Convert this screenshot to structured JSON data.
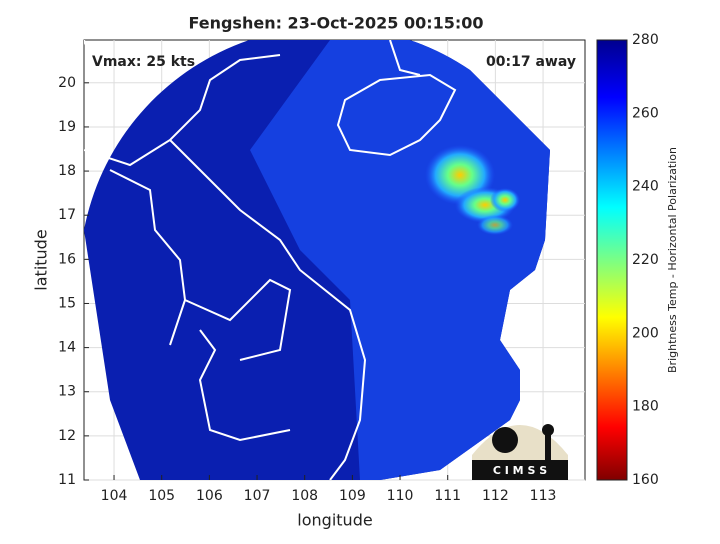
{
  "map": {
    "title": "Fengshen: 23-Oct-2025 00:15:00",
    "annotations": [
      "Vmax: 25 kts",
      "00:17 away"
    ],
    "xlabel": "longitude",
    "ylabel": "latitude",
    "xlim": [
      103.37,
      113.88
    ],
    "xticks": [
      104,
      105,
      106,
      107,
      108,
      109,
      110,
      111,
      112,
      113
    ],
    "ylim": [
      11,
      20.97
    ],
    "yticks": [
      11,
      12,
      13,
      14,
      15,
      16,
      17,
      18,
      19,
      20
    ],
    "grid": true,
    "colorbar": {
      "label": "Brightness Temp - Horizontal Polarization",
      "lim": [
        160,
        280
      ],
      "ticks": [
        160,
        180,
        200,
        220,
        240,
        260,
        280
      ]
    },
    "logo": "C I M S S"
  }
}
